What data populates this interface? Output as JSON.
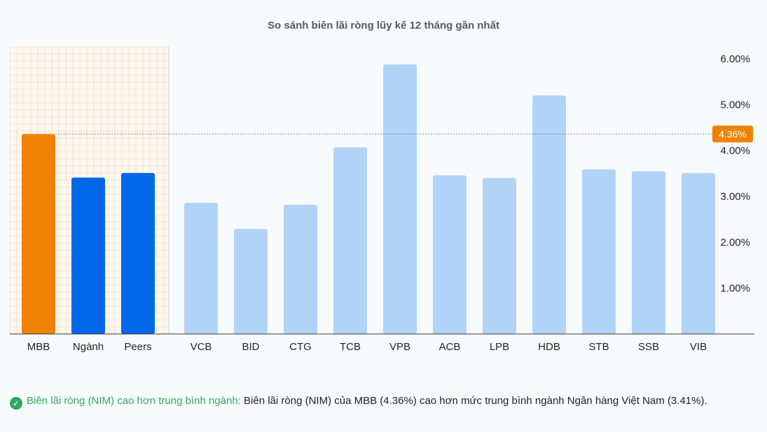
{
  "chart_data": {
    "type": "bar",
    "title": "So sánh biên lãi ròng lũy kế 12 tháng gần nhất",
    "xlabel": "",
    "ylabel": "",
    "ylim": [
      0,
      6.0
    ],
    "y_ticks": [
      "1.00%",
      "2.00%",
      "3.00%",
      "4.00%",
      "5.00%",
      "6.00%"
    ],
    "y_tick_values": [
      1,
      2,
      3,
      4,
      5,
      6
    ],
    "grid": "on (left highlighted section only)",
    "categories": [
      "MBB",
      "Ngành",
      "Peers",
      "VCB",
      "BID",
      "CTG",
      "TCB",
      "VPB",
      "ACB",
      "LPB",
      "HDB",
      "STB",
      "SSB",
      "VIB"
    ],
    "values": [
      4.36,
      3.41,
      3.51,
      2.86,
      2.29,
      2.82,
      4.07,
      5.88,
      3.46,
      3.4,
      5.2,
      3.59,
      3.55,
      3.51
    ],
    "bar_colors": [
      "#ef8200",
      "#0068e8",
      "#0068e8",
      "#b1d3f8",
      "#b1d3f8",
      "#b1d3f8",
      "#b1d3f8",
      "#b1d3f8",
      "#b1d3f8",
      "#b1d3f8",
      "#b1d3f8",
      "#b1d3f8",
      "#b1d3f8",
      "#b1d3f8"
    ],
    "reference_line": {
      "value": 4.36,
      "label": "4.36%",
      "color": "#ef8200"
    }
  },
  "insight": {
    "heading": "Biên lãi ròng (NIM) cao hơn trung bình ngành:",
    "text": " Biên lãi ròng (NIM) của MBB (4.36%) cao hơn mức trung bình ngành Ngân hàng Việt Nam (3.41%)."
  }
}
